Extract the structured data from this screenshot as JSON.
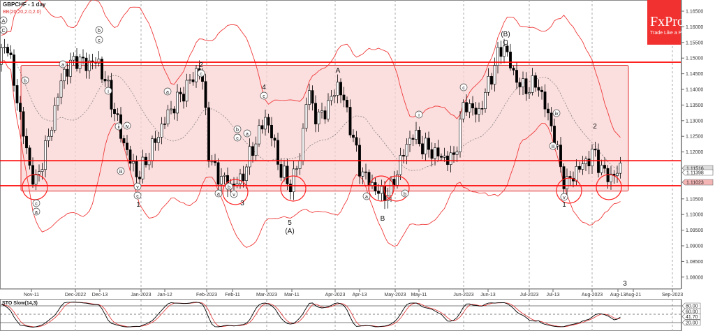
{
  "header": {
    "symbol_title": "GBPCHF - 1 day",
    "indicator_label": "BB(20,20,2.0,2.0)"
  },
  "logo": {
    "brand": "FxPro",
    "tagline": "Trade Like a Pro"
  },
  "colors": {
    "bull": "#ffffff",
    "bear": "#000000",
    "band": "#f03a3a",
    "zone_fill": "#f9d3d3",
    "level": "#ff0000",
    "stoch_k": "#000000",
    "stoch_d": "#e03030"
  },
  "chart_data": [
    {
      "type": "candlestick",
      "title": "GBPCHF - 1 day",
      "ylim": [
        1.076,
        1.169
      ],
      "y_ticks": [
        "1.16500",
        "1.16000",
        "1.15500",
        "1.15000",
        "1.14500",
        "1.14000",
        "1.13500",
        "1.13000",
        "1.12500",
        "1.12000",
        "1.10500",
        "1.10000",
        "1.09500",
        "1.09000",
        "1.08500",
        "1.08000"
      ],
      "price_tags": [
        {
          "value": "1.11516",
          "style": "gray"
        },
        {
          "value": "1.11398",
          "style": "white"
        },
        {
          "value": "1.11023",
          "style": "red"
        }
      ],
      "x_ticks": [
        "Nov-11",
        "Dec-2022",
        "Dec-13",
        "Jan-2023",
        "Jan-12",
        "Feb-2023",
        "Feb-11",
        "Mar-2023",
        "Mar-11",
        "Apr-2023",
        "Apr-13",
        "May-2023",
        "May-11",
        "Jun-2023",
        "Jun-13",
        "Jul-2023",
        "Jul-13",
        "Aug-2023",
        "Aug-13",
        "Aug-21",
        "Sep-2023"
      ],
      "close_path": [
        {
          "date": "Oct-31",
          "close": 1.148
        },
        {
          "date": "Nov-01",
          "close": 1.157
        },
        {
          "date": "Nov-08",
          "close": 1.118
        },
        {
          "date": "Nov-11",
          "close": 1.109
        },
        {
          "date": "Nov-17",
          "close": 1.125
        },
        {
          "date": "Nov-24",
          "close": 1.145
        },
        {
          "date": "Dec-2022",
          "close": 1.15
        },
        {
          "date": "Dec-06",
          "close": 1.148
        },
        {
          "date": "Dec-13",
          "close": 1.149
        },
        {
          "date": "Dec-17",
          "close": 1.14
        },
        {
          "date": "Dec-22",
          "close": 1.128
        },
        {
          "date": "Dec-27",
          "close": 1.118
        },
        {
          "date": "Jan-2023",
          "close": 1.112
        },
        {
          "date": "Jan-05",
          "close": 1.12
        },
        {
          "date": "Jan-12",
          "close": 1.132
        },
        {
          "date": "Jan-20",
          "close": 1.14
        },
        {
          "date": "Jan-27",
          "close": 1.147
        },
        {
          "date": "Jan-30",
          "close": 1.14
        },
        {
          "date": "Feb-2023",
          "close": 1.117
        },
        {
          "date": "Feb-06",
          "close": 1.112
        },
        {
          "date": "Feb-10",
          "close": 1.109
        },
        {
          "date": "Feb-15",
          "close": 1.111
        },
        {
          "date": "Feb-20",
          "close": 1.12
        },
        {
          "date": "Mar-2023",
          "close": 1.131
        },
        {
          "date": "Mar-04",
          "close": 1.125
        },
        {
          "date": "Mar-07",
          "close": 1.115
        },
        {
          "date": "Mar-11",
          "close": 1.109
        },
        {
          "date": "Mar-16",
          "close": 1.118
        },
        {
          "date": "Mar-20",
          "close": 1.14
        },
        {
          "date": "Mar-24",
          "close": 1.13
        },
        {
          "date": "Mar-29",
          "close": 1.135
        },
        {
          "date": "Apr-03",
          "close": 1.142
        },
        {
          "date": "Apr-08",
          "close": 1.13
        },
        {
          "date": "Apr-13",
          "close": 1.115
        },
        {
          "date": "Apr-18",
          "close": 1.11
        },
        {
          "date": "Apr-24",
          "close": 1.106
        },
        {
          "date": "Apr-28",
          "close": 1.108
        },
        {
          "date": "May-02",
          "close": 1.118
        },
        {
          "date": "May-07",
          "close": 1.126
        },
        {
          "date": "May-12",
          "close": 1.122
        },
        {
          "date": "May-17",
          "close": 1.12
        },
        {
          "date": "May-22",
          "close": 1.118
        },
        {
          "date": "May-27",
          "close": 1.118
        },
        {
          "date": "Jun-2023",
          "close": 1.136
        },
        {
          "date": "Jun-08",
          "close": 1.132
        },
        {
          "date": "Jun-13",
          "close": 1.142
        },
        {
          "date": "Jun-18",
          "close": 1.152
        },
        {
          "date": "Jun-20",
          "close": 1.154
        },
        {
          "date": "Jun-24",
          "close": 1.145
        },
        {
          "date": "Jun-29",
          "close": 1.14
        },
        {
          "date": "Jul-06",
          "close": 1.142
        },
        {
          "date": "Jul-12",
          "close": 1.128
        },
        {
          "date": "Jul-15",
          "close": 1.118
        },
        {
          "date": "Jul-18",
          "close": 1.109
        },
        {
          "date": "Jul-23",
          "close": 1.114
        },
        {
          "date": "Jul-28",
          "close": 1.117
        },
        {
          "date": "Aug-2023",
          "close": 1.12
        },
        {
          "date": "Aug-06",
          "close": 1.113
        },
        {
          "date": "Aug-10",
          "close": 1.112
        },
        {
          "date": "Aug-14",
          "close": 1.1152
        }
      ],
      "levels": [
        1.1487,
        1.1172,
        1.1092
      ],
      "zone": [
        1.1075,
        1.1477
      ],
      "wave_labels": [
        "A",
        "C",
        "(B)",
        "C",
        "A",
        "4",
        "2",
        "2",
        "1",
        "3",
        "5",
        "(A)",
        "B",
        "1",
        "3",
        "a",
        "b",
        "c",
        "a",
        "b",
        "c",
        "i",
        "ii",
        "iii",
        "iv",
        "v",
        "a",
        "b",
        "c",
        "v",
        "c",
        "a",
        "c",
        "a",
        "b",
        "c",
        "iv",
        "v",
        "iii",
        "i",
        "c",
        "a",
        "b"
      ]
    },
    {
      "type": "line",
      "title": "STO Slow(14,3)",
      "ylim": [
        0,
        100
      ],
      "y_ticks": [
        "80.00",
        "60.00",
        "41.70",
        "20.00"
      ],
      "series": [
        {
          "name": "%K"
        },
        {
          "name": "%D"
        }
      ]
    }
  ]
}
